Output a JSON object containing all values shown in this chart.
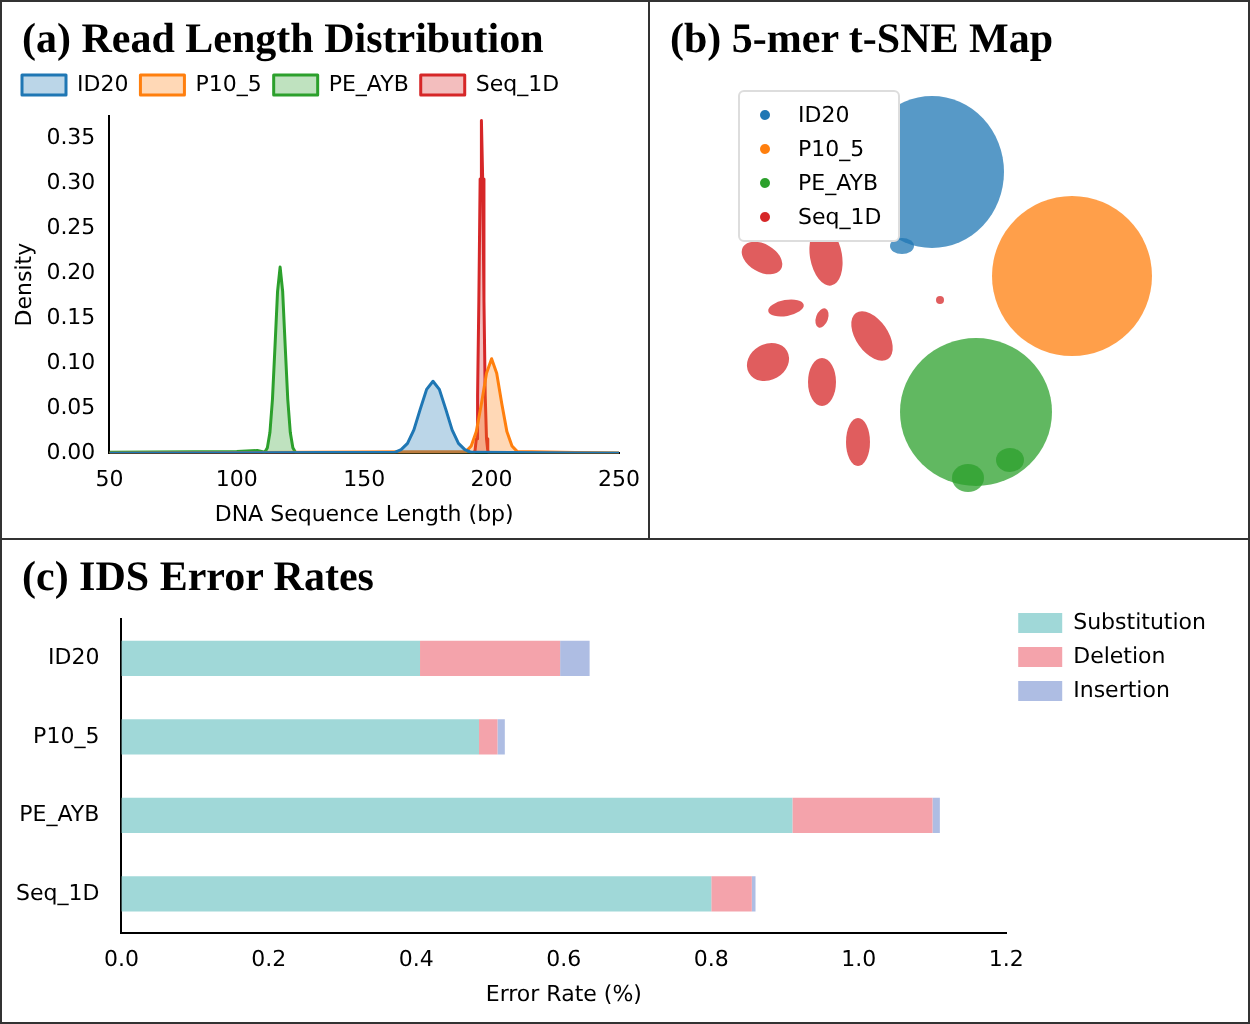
{
  "chart_data": [
    {
      "type": "area",
      "title": "(a) Read Length Distribution",
      "xlabel": "DNA Sequence Length (bp)",
      "ylabel": "Density",
      "xlim": [
        50,
        250
      ],
      "xticks": [
        50,
        100,
        150,
        200,
        250
      ],
      "ylim": [
        0,
        0.375
      ],
      "yticks": [
        {
          "value": 0,
          "label": "0.00"
        },
        0.05,
        {
          "value": 0.1,
          "label": "0.10"
        },
        0.15,
        {
          "value": 0.2,
          "label": "0.20"
        },
        0.25,
        {
          "value": 0.3,
          "label": "0.30"
        },
        0.35
      ],
      "legend": "top left",
      "series": [
        {
          "name": "ID20",
          "color": "#1f77b4",
          "x": [
            50,
            162,
            164.5,
            167,
            169.5,
            172,
            174.5,
            177,
            179.5,
            182,
            184.5,
            187,
            189.5,
            192,
            250
          ],
          "values": [
            0,
            0.001,
            0.004,
            0.011,
            0.026,
            0.049,
            0.071,
            0.08,
            0.071,
            0.049,
            0.026,
            0.011,
            0.004,
            0.001,
            0
          ]
        },
        {
          "name": "P10_5",
          "color": "#ff7f0e",
          "x": [
            50,
            190,
            192,
            194,
            196,
            198,
            200,
            202,
            204,
            206,
            208,
            210,
            250
          ],
          "values": [
            0,
            0.002,
            0.008,
            0.024,
            0.055,
            0.089,
            0.105,
            0.089,
            0.055,
            0.024,
            0.008,
            0.002,
            0
          ]
        },
        {
          "name": "PE_AYB",
          "color": "#2ca02c",
          "x": [
            50,
            100,
            108,
            111,
            112,
            113,
            114,
            115,
            116,
            117,
            118,
            119,
            120,
            121,
            122,
            123,
            250
          ],
          "values": [
            0.001,
            0.002,
            0.003,
            0.001,
            0.006,
            0.023,
            0.06,
            0.119,
            0.18,
            0.207,
            0.18,
            0.119,
            0.06,
            0.023,
            0.006,
            0.001,
            0
          ]
        },
        {
          "name": "Seq_1D",
          "color": "#d62728",
          "x": [
            50,
            193,
            193.5,
            194,
            194.5,
            195,
            195.5,
            196,
            196.5,
            197,
            197.5,
            198,
            198.5,
            199,
            250
          ],
          "values": [
            0,
            0,
            0.003,
            0.016,
            0.064,
            0.17,
            0.305,
            0.37,
            0.305,
            0.17,
            0.064,
            0.016,
            0.003,
            0,
            0
          ]
        }
      ]
    },
    {
      "type": "other",
      "title": "(b) 5-mer t-SNE Map",
      "legend": "top left",
      "series": [
        {
          "name": "ID20",
          "color": "#1f77b4"
        },
        {
          "name": "P10_5",
          "color": "#ff7f0e"
        },
        {
          "name": "PE_AYB",
          "color": "#2ca02c"
        },
        {
          "name": "Seq_1D",
          "color": "#d62728"
        }
      ]
    },
    {
      "type": "bar",
      "title": "(c) IDS Error Rates",
      "orientation": "horizontal",
      "stacked": true,
      "xlabel": "Error Rate (%)",
      "xlim": [
        0,
        1.2
      ],
      "xticks": [
        {
          "value": 0,
          "label": "0.0"
        },
        0.2,
        0.4,
        0.6,
        0.8,
        {
          "value": 1,
          "label": "1.0"
        },
        1.2
      ],
      "legend": "top right",
      "categories": [
        "ID20",
        "P10_5",
        "PE_AYB",
        "Seq_1D"
      ],
      "series": [
        {
          "name": "Substitution",
          "color": "#a0d8d8",
          "values": [
            0.405,
            0.485,
            0.91,
            0.8
          ]
        },
        {
          "name": "Deletion",
          "color": "#f4a3ab",
          "values": [
            0.19,
            0.025,
            0.19,
            0.055
          ]
        },
        {
          "name": "Insertion",
          "color": "#aebde3",
          "values": [
            0.04,
            0.01,
            0.01,
            0.005
          ]
        }
      ]
    }
  ]
}
